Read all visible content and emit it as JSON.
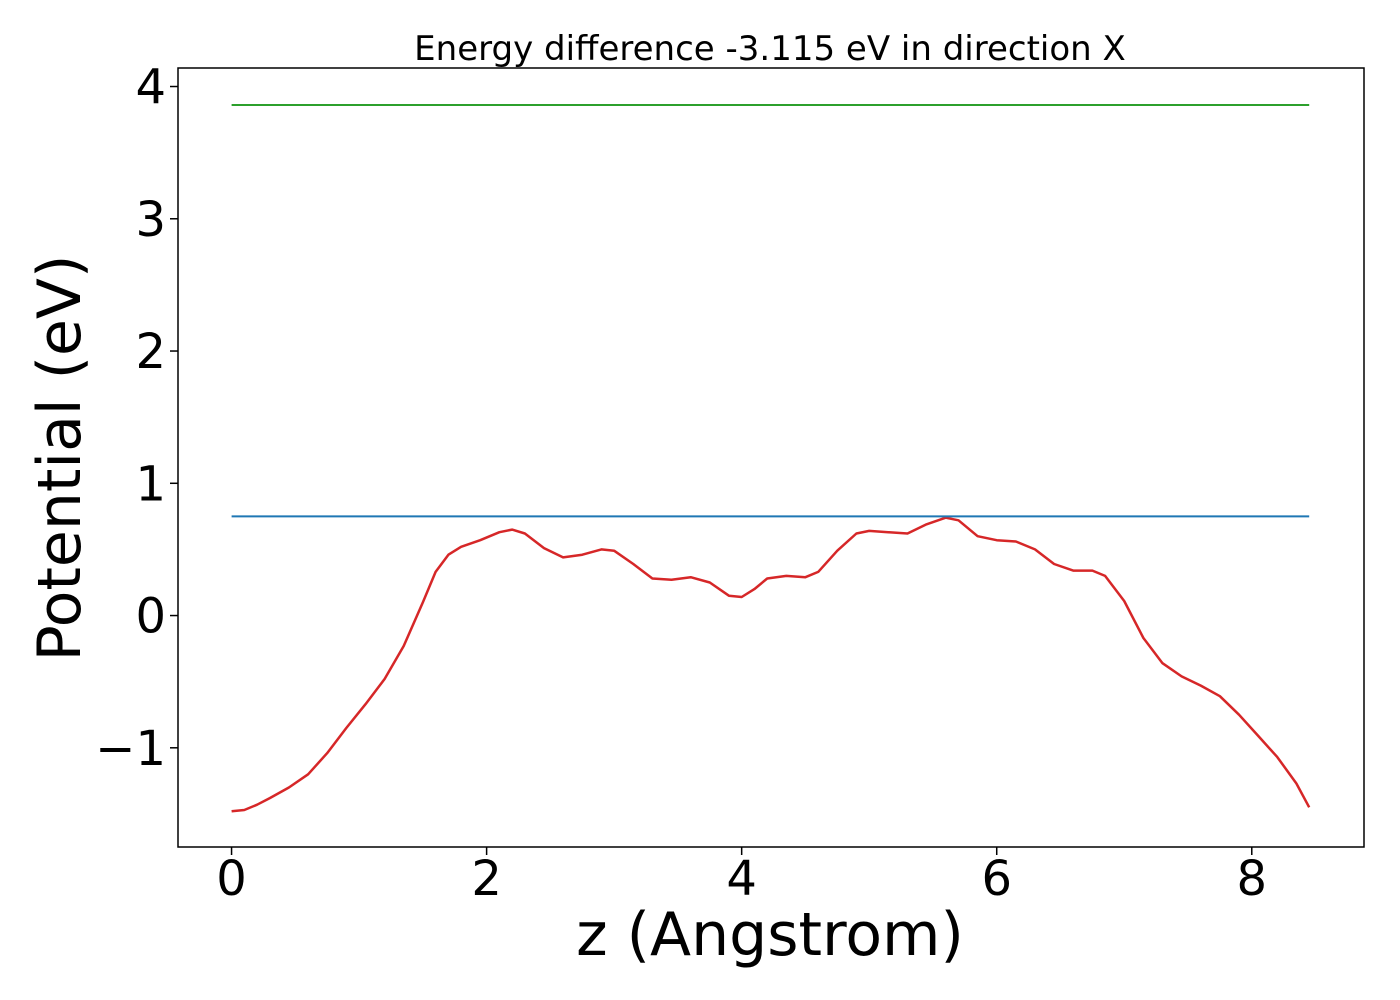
{
  "chart_data": {
    "type": "line",
    "title": "Energy difference -3.115 eV in direction X",
    "xlabel": "z (Angstrom)",
    "ylabel": "Potential (eV)",
    "xlim": [
      -0.42,
      8.88
    ],
    "ylim": [
      -1.75,
      4.14
    ],
    "xticks": [
      0,
      2,
      4,
      6,
      8
    ],
    "yticks": [
      -1,
      0,
      1,
      2,
      3,
      4
    ],
    "xtick_labels": [
      "0",
      "2",
      "4",
      "6",
      "8"
    ],
    "ytick_labels": [
      "−1",
      "0",
      "1",
      "2",
      "3",
      "4"
    ],
    "grid": false,
    "series": [
      {
        "color": "#d62728",
        "x": [
          0.0,
          0.1,
          0.2,
          0.3,
          0.45,
          0.6,
          0.75,
          0.9,
          1.05,
          1.2,
          1.35,
          1.5,
          1.6,
          1.7,
          1.8,
          1.95,
          2.1,
          2.2,
          2.3,
          2.45,
          2.6,
          2.75,
          2.9,
          3.0,
          3.15,
          3.3,
          3.45,
          3.6,
          3.75,
          3.9,
          4.0,
          4.1,
          4.2,
          4.35,
          4.5,
          4.6,
          4.75,
          4.9,
          5.0,
          5.15,
          5.3,
          5.45,
          5.6,
          5.7,
          5.85,
          6.0,
          6.15,
          6.3,
          6.45,
          6.6,
          6.75,
          6.85,
          7.0,
          7.15,
          7.3,
          7.45,
          7.6,
          7.75,
          7.9,
          8.05,
          8.2,
          8.35,
          8.45
        ],
        "y": [
          -1.48,
          -1.47,
          -1.43,
          -1.38,
          -1.3,
          -1.2,
          -1.04,
          -0.85,
          -0.67,
          -0.48,
          -0.23,
          0.1,
          0.33,
          0.46,
          0.52,
          0.57,
          0.63,
          0.65,
          0.62,
          0.51,
          0.44,
          0.46,
          0.5,
          0.49,
          0.39,
          0.28,
          0.27,
          0.29,
          0.25,
          0.15,
          0.14,
          0.2,
          0.28,
          0.3,
          0.29,
          0.33,
          0.49,
          0.62,
          0.64,
          0.63,
          0.62,
          0.69,
          0.74,
          0.72,
          0.6,
          0.57,
          0.56,
          0.5,
          0.39,
          0.34,
          0.34,
          0.3,
          0.11,
          -0.17,
          -0.36,
          -0.46,
          -0.53,
          -0.61,
          -0.75,
          -0.91,
          -1.07,
          -1.27,
          -1.45
        ]
      },
      {
        "color": "#1f77b4",
        "x": [
          0.0,
          8.45
        ],
        "y": [
          0.75,
          0.75
        ]
      },
      {
        "color": "#2ca02c",
        "x": [
          0.0,
          8.45
        ],
        "y": [
          3.86,
          3.86
        ]
      }
    ]
  }
}
